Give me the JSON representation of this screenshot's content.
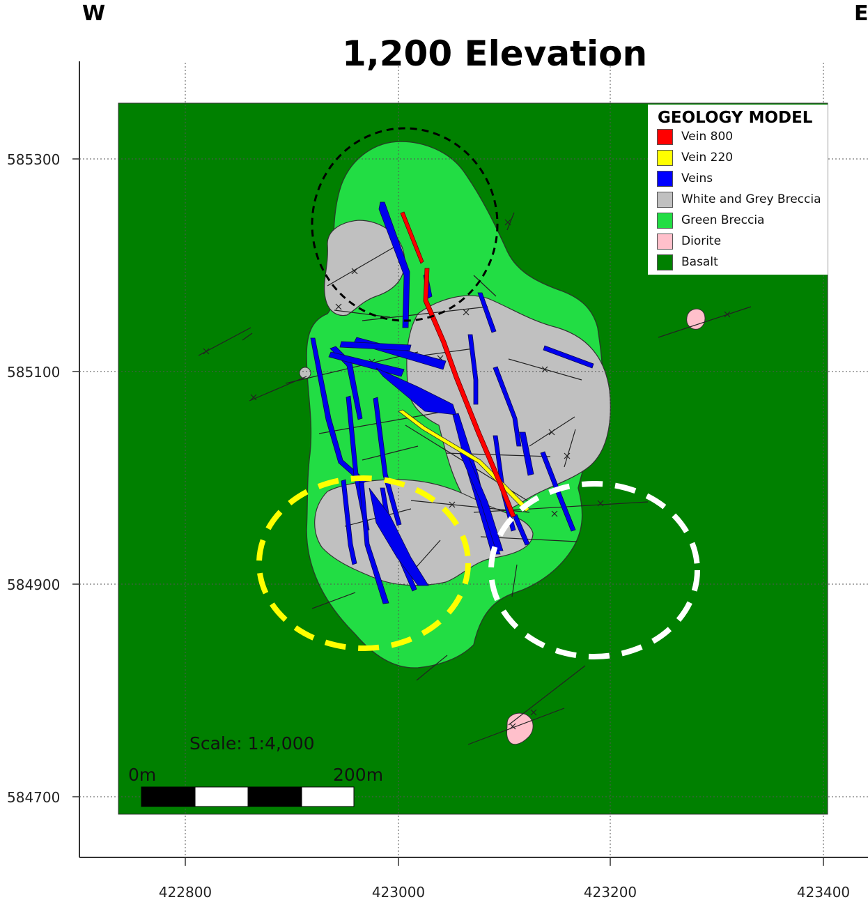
{
  "title": "1,200 Elevation",
  "directions": {
    "west": "W",
    "east": "E"
  },
  "axes": {
    "x_ticks": [
      "422800",
      "423000",
      "423200",
      "423400"
    ],
    "y_ticks": [
      "585300",
      "585100",
      "584900",
      "584700"
    ]
  },
  "legend": {
    "title": "GEOLOGY MODEL",
    "items": [
      {
        "label": "Vein 800",
        "color": "#ff0000"
      },
      {
        "label": "Vein 220",
        "color": "#ffff00"
      },
      {
        "label": "Veins",
        "color": "#0000ff"
      },
      {
        "label": "White and Grey Breccia",
        "color": "#c0c0c0"
      },
      {
        "label": "Green Breccia",
        "color": "#22dd44"
      },
      {
        "label": "Diorite",
        "color": "#ffc0cb"
      },
      {
        "label": "Basalt",
        "color": "#008000"
      }
    ]
  },
  "scale": {
    "text": "Scale: 1:4,000",
    "start_label": "0m",
    "end_label": "200m"
  },
  "target_outline_colors": {
    "north": "#000000",
    "southwest": "#ffff00",
    "southeast": "#ffffff"
  }
}
